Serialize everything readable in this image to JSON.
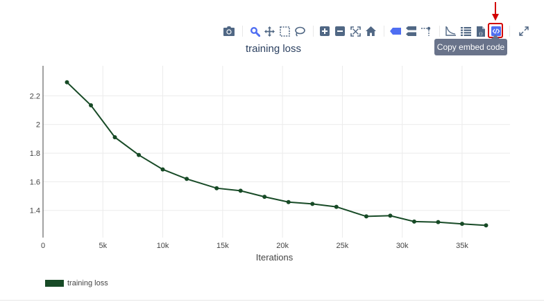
{
  "modebar": {
    "buttons": [
      {
        "name": "camera-icon",
        "title": "Download plot as a png"
      },
      {
        "name": "zoom-icon",
        "title": "Zoom"
      },
      {
        "name": "pan-icon",
        "title": "Pan"
      },
      {
        "name": "box-select-icon",
        "title": "Box Select"
      },
      {
        "name": "lasso-select-icon",
        "title": "Lasso Select"
      },
      {
        "name": "zoom-in-icon",
        "title": "Zoom in"
      },
      {
        "name": "zoom-out-icon",
        "title": "Zoom out"
      },
      {
        "name": "autoscale-icon",
        "title": "Autoscale"
      },
      {
        "name": "reset-axes-icon",
        "title": "Reset axes"
      },
      {
        "name": "hover-closest-icon",
        "title": "Show closest data on hover"
      },
      {
        "name": "hover-compare-icon",
        "title": "Compare data on hover"
      },
      {
        "name": "spike-lines-icon",
        "title": "Toggle Spike Lines"
      },
      {
        "name": "line-chart-icon",
        "title": "Chart"
      },
      {
        "name": "data-table-icon",
        "title": "Data table"
      },
      {
        "name": "json-file-icon",
        "title": "Export"
      },
      {
        "name": "embed-code-icon",
        "title": "Copy embed code"
      },
      {
        "name": "fullscreen-icon",
        "title": "Fullscreen"
      }
    ],
    "accent_color": "#4f6ef2",
    "icon_color": "#506784"
  },
  "tooltip": {
    "text": "Copy embed code"
  },
  "annotation": {
    "highlight_color": "#d30000"
  },
  "chart_data": {
    "type": "line",
    "title": "training loss",
    "xlabel": "Iterations",
    "ylabel": "",
    "xlim": [
      0,
      39000
    ],
    "ylim": [
      1.21,
      2.41
    ],
    "xticks": [
      0,
      5000,
      10000,
      15000,
      20000,
      25000,
      30000,
      35000
    ],
    "xtick_labels": [
      "0",
      "5k",
      "10k",
      "15k",
      "20k",
      "25k",
      "30k",
      "35k"
    ],
    "yticks": [
      1.4,
      1.6,
      1.8,
      2.0,
      2.2
    ],
    "ytick_labels": [
      "1.4",
      "1.6",
      "1.8",
      "2",
      "2.2"
    ],
    "grid": true,
    "legend_position": "bottom-left",
    "series": [
      {
        "name": "training loss",
        "color": "#174a26",
        "x": [
          2000,
          4000,
          6000,
          8000,
          10000,
          12000,
          14500,
          16500,
          18500,
          20500,
          22500,
          24500,
          27000,
          29000,
          31000,
          33000,
          35000,
          37000
        ],
        "y": [
          2.295,
          2.134,
          1.911,
          1.787,
          1.686,
          1.62,
          1.555,
          1.537,
          1.495,
          1.458,
          1.445,
          1.425,
          1.358,
          1.363,
          1.322,
          1.318,
          1.306,
          1.295
        ]
      }
    ]
  },
  "legend": {
    "label": "training loss"
  }
}
